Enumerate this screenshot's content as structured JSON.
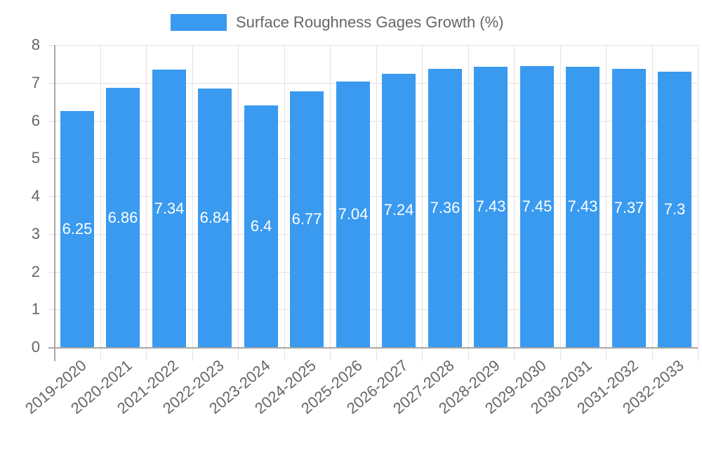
{
  "legend": {
    "label": "Surface Roughness Gages Growth (%)",
    "color": "#3a9af0"
  },
  "chart_data": {
    "type": "bar",
    "title": "",
    "xlabel": "",
    "ylabel": "",
    "ylim": [
      0,
      8
    ],
    "yticks": [
      "0",
      "1",
      "2",
      "3",
      "4",
      "5",
      "6",
      "7",
      "8"
    ],
    "grid": true,
    "legend_position": "top",
    "categories": [
      "2019-2020",
      "2020-2021",
      "2021-2022",
      "2022-2023",
      "2023-2024",
      "2024-2025",
      "2025-2026",
      "2026-2027",
      "2027-2028",
      "2028-2029",
      "2029-2030",
      "2030-2031",
      "2031-2032",
      "2032-2033"
    ],
    "series": [
      {
        "name": "Surface Roughness Gages Growth (%)",
        "color": "#3a9af0",
        "values": [
          6.25,
          6.86,
          7.34,
          6.84,
          6.4,
          6.77,
          7.04,
          7.24,
          7.36,
          7.43,
          7.45,
          7.43,
          7.37,
          7.3
        ],
        "labels": [
          "6.25",
          "6.86",
          "7.34",
          "6.84",
          "6.4",
          "6.77",
          "7.04",
          "7.24",
          "7.36",
          "7.43",
          "7.45",
          "7.43",
          "7.37",
          "7.3"
        ]
      }
    ]
  }
}
